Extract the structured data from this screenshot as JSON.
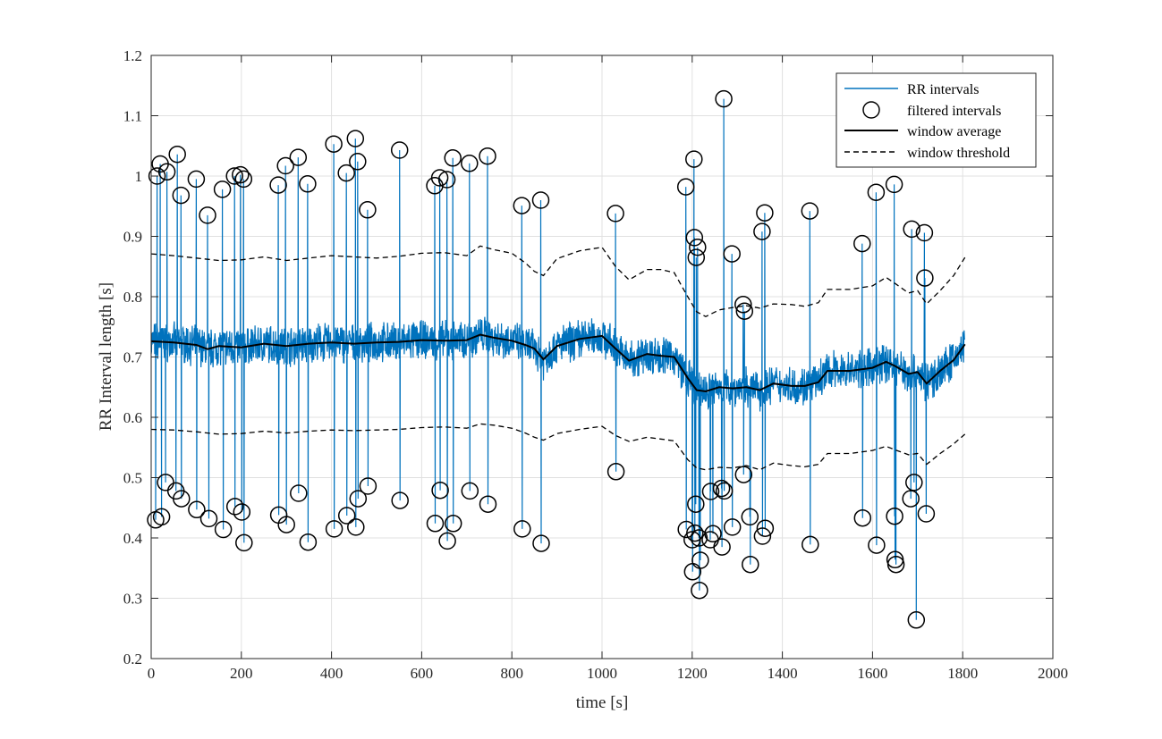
{
  "colors": {
    "rr": "#0072bd",
    "marker": "#000000",
    "average": "#000000",
    "threshold": "#000000",
    "grid": "#e0e0e0",
    "axis": "#262626"
  },
  "chart_data": {
    "type": "line",
    "xlabel": "time [s]",
    "ylabel": "RR Interval length [s]",
    "xlim": [
      0,
      2000
    ],
    "ylim": [
      0.2,
      1.2
    ],
    "xticks": [
      0,
      200,
      400,
      600,
      800,
      1000,
      1200,
      1400,
      1600,
      1800,
      2000
    ],
    "yticks": [
      0.2,
      0.3,
      0.4,
      0.5,
      0.6,
      0.7,
      0.8,
      0.9,
      1.0,
      1.1,
      1.2
    ],
    "xtick_labels": [
      "0",
      "200",
      "400",
      "600",
      "800",
      "1000",
      "1200",
      "1400",
      "1600",
      "1800",
      "2000"
    ],
    "ytick_labels": [
      "0.2",
      "0.3",
      "0.4",
      "0.5",
      "0.6",
      "0.7",
      "0.8",
      "0.9",
      "1",
      "1.1",
      "1.2"
    ],
    "grid": true,
    "legend_position": "top-right",
    "legend": [
      "RR intervals",
      "filtered intervals",
      "window average",
      "window threshold"
    ],
    "window_average": {
      "x": [
        0,
        50,
        100,
        125,
        150,
        200,
        250,
        300,
        350,
        400,
        450,
        500,
        550,
        600,
        650,
        700,
        730,
        760,
        800,
        830,
        850,
        870,
        900,
        950,
        1000,
        1030,
        1060,
        1100,
        1130,
        1160,
        1190,
        1210,
        1230,
        1260,
        1290,
        1320,
        1350,
        1380,
        1420,
        1450,
        1480,
        1500,
        1550,
        1600,
        1630,
        1650,
        1680,
        1700,
        1720,
        1750,
        1780,
        1805
      ],
      "y": [
        0.726,
        0.724,
        0.72,
        0.713,
        0.718,
        0.716,
        0.722,
        0.718,
        0.722,
        0.724,
        0.722,
        0.724,
        0.725,
        0.728,
        0.727,
        0.728,
        0.737,
        0.732,
        0.727,
        0.72,
        0.714,
        0.696,
        0.718,
        0.73,
        0.735,
        0.714,
        0.694,
        0.705,
        0.702,
        0.7,
        0.665,
        0.645,
        0.643,
        0.65,
        0.648,
        0.65,
        0.645,
        0.656,
        0.652,
        0.652,
        0.658,
        0.677,
        0.677,
        0.682,
        0.692,
        0.685,
        0.672,
        0.675,
        0.656,
        0.677,
        0.695,
        0.721
      ]
    },
    "window_threshold_upper": {
      "x": [
        0,
        50,
        100,
        150,
        200,
        250,
        300,
        350,
        400,
        450,
        500,
        550,
        600,
        650,
        700,
        730,
        760,
        800,
        830,
        850,
        870,
        900,
        950,
        1000,
        1030,
        1060,
        1100,
        1130,
        1160,
        1190,
        1210,
        1230,
        1260,
        1290,
        1320,
        1350,
        1380,
        1420,
        1450,
        1480,
        1500,
        1550,
        1600,
        1630,
        1650,
        1680,
        1700,
        1720,
        1750,
        1780,
        1805
      ],
      "y": [
        0.871,
        0.868,
        0.864,
        0.86,
        0.861,
        0.866,
        0.86,
        0.864,
        0.868,
        0.866,
        0.864,
        0.867,
        0.872,
        0.873,
        0.868,
        0.884,
        0.878,
        0.872,
        0.856,
        0.842,
        0.835,
        0.863,
        0.876,
        0.882,
        0.85,
        0.828,
        0.845,
        0.845,
        0.84,
        0.8,
        0.775,
        0.767,
        0.778,
        0.782,
        0.785,
        0.781,
        0.788,
        0.787,
        0.784,
        0.79,
        0.812,
        0.812,
        0.818,
        0.832,
        0.822,
        0.806,
        0.81,
        0.788,
        0.81,
        0.835,
        0.865
      ]
    },
    "window_threshold_lower": {
      "x": [
        0,
        50,
        100,
        150,
        200,
        250,
        300,
        350,
        400,
        450,
        500,
        550,
        600,
        650,
        700,
        730,
        760,
        800,
        830,
        850,
        870,
        900,
        950,
        1000,
        1030,
        1060,
        1100,
        1130,
        1160,
        1190,
        1210,
        1230,
        1260,
        1290,
        1320,
        1350,
        1380,
        1420,
        1450,
        1480,
        1500,
        1550,
        1600,
        1630,
        1650,
        1680,
        1700,
        1720,
        1750,
        1780,
        1805
      ],
      "y": [
        0.58,
        0.579,
        0.576,
        0.572,
        0.573,
        0.577,
        0.574,
        0.577,
        0.579,
        0.578,
        0.579,
        0.58,
        0.583,
        0.584,
        0.582,
        0.589,
        0.587,
        0.582,
        0.574,
        0.567,
        0.562,
        0.573,
        0.58,
        0.585,
        0.57,
        0.56,
        0.567,
        0.564,
        0.561,
        0.53,
        0.516,
        0.513,
        0.517,
        0.516,
        0.52,
        0.513,
        0.524,
        0.52,
        0.518,
        0.522,
        0.54,
        0.54,
        0.545,
        0.552,
        0.546,
        0.538,
        0.54,
        0.522,
        0.54,
        0.556,
        0.572
      ]
    },
    "filtered_intervals": [
      {
        "x": 10,
        "y": 0.43
      },
      {
        "x": 13,
        "y": 1.0
      },
      {
        "x": 20,
        "y": 1.02
      },
      {
        "x": 23,
        "y": 0.435
      },
      {
        "x": 32,
        "y": 0.492
      },
      {
        "x": 35,
        "y": 1.007
      },
      {
        "x": 55,
        "y": 0.478
      },
      {
        "x": 58,
        "y": 1.036
      },
      {
        "x": 66,
        "y": 0.968
      },
      {
        "x": 67,
        "y": 0.465
      },
      {
        "x": 100,
        "y": 0.995
      },
      {
        "x": 101,
        "y": 0.447
      },
      {
        "x": 125,
        "y": 0.935
      },
      {
        "x": 128,
        "y": 0.432
      },
      {
        "x": 158,
        "y": 0.978
      },
      {
        "x": 160,
        "y": 0.414
      },
      {
        "x": 185,
        "y": 1.0
      },
      {
        "x": 186,
        "y": 0.452
      },
      {
        "x": 198,
        "y": 1.002
      },
      {
        "x": 201,
        "y": 0.443
      },
      {
        "x": 205,
        "y": 0.995
      },
      {
        "x": 206,
        "y": 0.392
      },
      {
        "x": 282,
        "y": 0.985
      },
      {
        "x": 283,
        "y": 0.438
      },
      {
        "x": 298,
        "y": 1.017
      },
      {
        "x": 300,
        "y": 0.422
      },
      {
        "x": 326,
        "y": 1.031
      },
      {
        "x": 327,
        "y": 0.474
      },
      {
        "x": 347,
        "y": 0.987
      },
      {
        "x": 348,
        "y": 0.393
      },
      {
        "x": 405,
        "y": 1.053
      },
      {
        "x": 406,
        "y": 0.415
      },
      {
        "x": 433,
        "y": 1.005
      },
      {
        "x": 434,
        "y": 0.437
      },
      {
        "x": 453,
        "y": 1.062
      },
      {
        "x": 454,
        "y": 0.418
      },
      {
        "x": 458,
        "y": 1.024
      },
      {
        "x": 459,
        "y": 0.465
      },
      {
        "x": 480,
        "y": 0.944
      },
      {
        "x": 481,
        "y": 0.486
      },
      {
        "x": 551,
        "y": 1.043
      },
      {
        "x": 552,
        "y": 0.462
      },
      {
        "x": 629,
        "y": 0.984
      },
      {
        "x": 630,
        "y": 0.424
      },
      {
        "x": 640,
        "y": 0.997
      },
      {
        "x": 641,
        "y": 0.479
      },
      {
        "x": 656,
        "y": 0.994
      },
      {
        "x": 657,
        "y": 0.395
      },
      {
        "x": 669,
        "y": 1.03
      },
      {
        "x": 670,
        "y": 0.424
      },
      {
        "x": 706,
        "y": 1.021
      },
      {
        "x": 707,
        "y": 0.478
      },
      {
        "x": 746,
        "y": 1.033
      },
      {
        "x": 747,
        "y": 0.456
      },
      {
        "x": 822,
        "y": 0.951
      },
      {
        "x": 823,
        "y": 0.415
      },
      {
        "x": 864,
        "y": 0.96
      },
      {
        "x": 865,
        "y": 0.391
      },
      {
        "x": 1030,
        "y": 0.938
      },
      {
        "x": 1031,
        "y": 0.51
      },
      {
        "x": 1186,
        "y": 0.982
      },
      {
        "x": 1187,
        "y": 0.414
      },
      {
        "x": 1200,
        "y": 0.397
      },
      {
        "x": 1201,
        "y": 0.344
      },
      {
        "x": 1204,
        "y": 1.028
      },
      {
        "x": 1205,
        "y": 0.898
      },
      {
        "x": 1206,
        "y": 0.408
      },
      {
        "x": 1208,
        "y": 0.456
      },
      {
        "x": 1209,
        "y": 0.865
      },
      {
        "x": 1212,
        "y": 0.882
      },
      {
        "x": 1215,
        "y": 0.4
      },
      {
        "x": 1216,
        "y": 0.313
      },
      {
        "x": 1218,
        "y": 0.363
      },
      {
        "x": 1240,
        "y": 0.397
      },
      {
        "x": 1241,
        "y": 0.477
      },
      {
        "x": 1246,
        "y": 0.407
      },
      {
        "x": 1265,
        "y": 0.482
      },
      {
        "x": 1266,
        "y": 0.385
      },
      {
        "x": 1270,
        "y": 1.128
      },
      {
        "x": 1271,
        "y": 0.478
      },
      {
        "x": 1288,
        "y": 0.871
      },
      {
        "x": 1289,
        "y": 0.418
      },
      {
        "x": 1313,
        "y": 0.787
      },
      {
        "x": 1314,
        "y": 0.505
      },
      {
        "x": 1316,
        "y": 0.776
      },
      {
        "x": 1328,
        "y": 0.435
      },
      {
        "x": 1329,
        "y": 0.356
      },
      {
        "x": 1355,
        "y": 0.908
      },
      {
        "x": 1356,
        "y": 0.403
      },
      {
        "x": 1361,
        "y": 0.939
      },
      {
        "x": 1362,
        "y": 0.416
      },
      {
        "x": 1461,
        "y": 0.942
      },
      {
        "x": 1462,
        "y": 0.389
      },
      {
        "x": 1577,
        "y": 0.888
      },
      {
        "x": 1578,
        "y": 0.433
      },
      {
        "x": 1608,
        "y": 0.973
      },
      {
        "x": 1609,
        "y": 0.388
      },
      {
        "x": 1648,
        "y": 0.986
      },
      {
        "x": 1649,
        "y": 0.436
      },
      {
        "x": 1650,
        "y": 0.364
      },
      {
        "x": 1652,
        "y": 0.356
      },
      {
        "x": 1685,
        "y": 0.465
      },
      {
        "x": 1687,
        "y": 0.912
      },
      {
        "x": 1692,
        "y": 0.492
      },
      {
        "x": 1697,
        "y": 0.264
      },
      {
        "x": 1715,
        "y": 0.906
      },
      {
        "x": 1716,
        "y": 0.831
      },
      {
        "x": 1719,
        "y": 0.44
      }
    ],
    "rr_noise_amplitude": 0.028,
    "rr_sample_step_s": 0.7
  }
}
